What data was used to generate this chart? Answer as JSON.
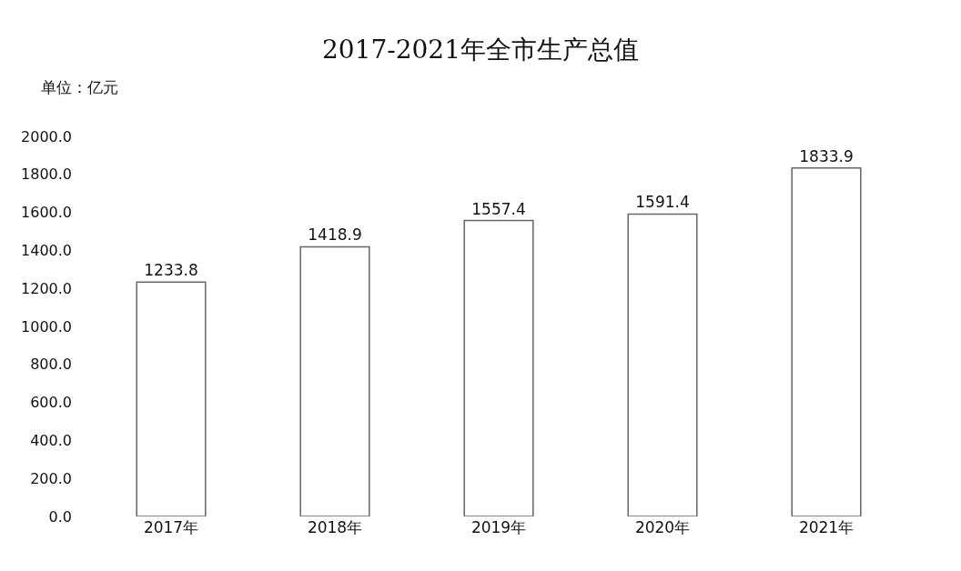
{
  "chart_data": {
    "type": "bar",
    "title": "2017-2021年全市生产总值",
    "annotations": [
      "单位：亿元"
    ],
    "categories": [
      "2017年",
      "2018年",
      "2019年",
      "2020年",
      "2021年"
    ],
    "values": [
      1233.8,
      1418.9,
      1557.4,
      1591.4,
      1833.9
    ],
    "color": "#ffffff",
    "data_labels": true,
    "ylim": [
      0,
      2000
    ],
    "yticks": [
      {
        "value": 0,
        "label": "0.0"
      },
      {
        "value": 200,
        "label": "200.0"
      },
      {
        "value": 400,
        "label": "400.0"
      },
      {
        "value": 600,
        "label": "600.0"
      },
      {
        "value": 800,
        "label": "800.0"
      },
      {
        "value": 1000,
        "label": "1000.0"
      },
      {
        "value": 1200,
        "label": "1200.0"
      },
      {
        "value": 1400,
        "label": "1400.0"
      },
      {
        "value": 1600,
        "label": "1600.0"
      },
      {
        "value": 1800,
        "label": "1800.0"
      },
      {
        "value": 2000,
        "label": "2000.0"
      }
    ]
  }
}
